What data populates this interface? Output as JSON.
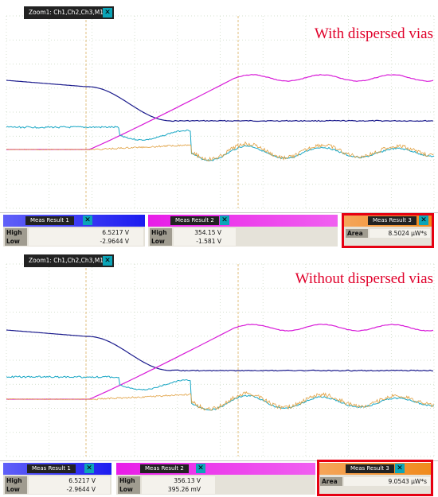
{
  "panels": [
    {
      "zoom_title": "Zoom1: Ch1,Ch2,Ch3,M1",
      "annotation": "With dispersed vias",
      "meas": [
        {
          "title": "Meas Result 1",
          "rows": [
            {
              "label": "High",
              "value": "6.5217 V"
            },
            {
              "label": "Low",
              "value": "-2.9644 V"
            }
          ],
          "color": "#1c1cf0"
        },
        {
          "title": "Meas Result 2",
          "rows": [
            {
              "label": "High",
              "value": "354.15 V"
            },
            {
              "label": "Low",
              "value": "-1.581 V"
            }
          ],
          "color": "#e81de8"
        },
        {
          "title": "Meas Result 3",
          "rows": [
            {
              "label": "Area",
              "value": "8.5024 µW*s"
            }
          ],
          "color": "#f08a1c"
        }
      ]
    },
    {
      "zoom_title": "Zoom1: Ch1,Ch2,Ch3,M1",
      "annotation": "Without dispersed vias",
      "meas": [
        {
          "title": "Meas Result 1",
          "rows": [
            {
              "label": "High",
              "value": "6.5217 V"
            },
            {
              "label": "Low",
              "value": "-2.9644 V"
            }
          ],
          "color": "#1c1cf0"
        },
        {
          "title": "Meas Result 2",
          "rows": [
            {
              "label": "High",
              "value": "356.13 V"
            },
            {
              "label": "Low",
              "value": "395.26 mV"
            }
          ],
          "color": "#e81de8"
        },
        {
          "title": "Meas Result 3",
          "rows": [
            {
              "label": "Area",
              "value": "9.0543 µW*s"
            }
          ],
          "color": "#f08a1c"
        }
      ]
    }
  ],
  "close_glyph": "✕",
  "trace_colors": {
    "ch1": "#1a1a8c",
    "ch2": "#d81cd8",
    "ch3": "#17a6c4",
    "m1": "#e0a040"
  },
  "highlight_color": "#e60012"
}
